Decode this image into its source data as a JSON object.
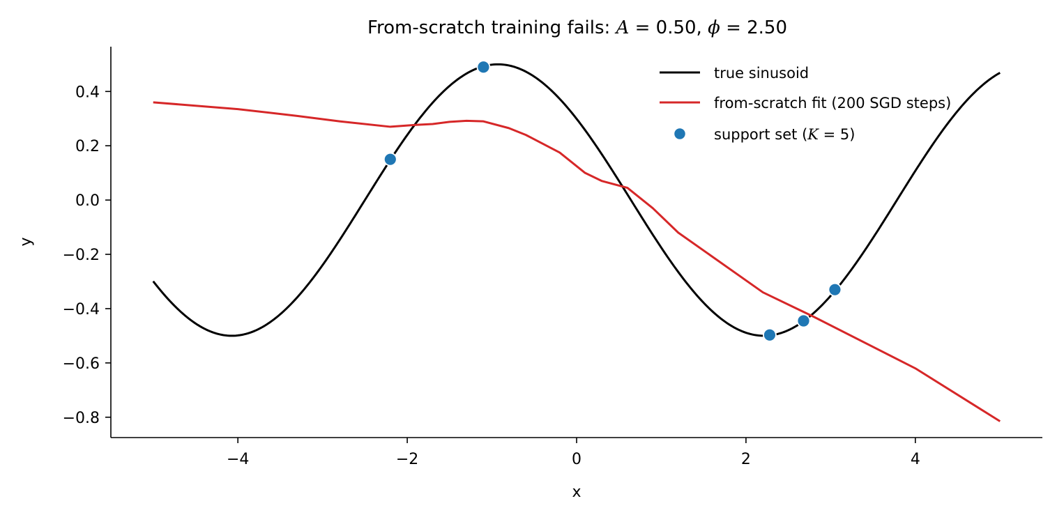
{
  "chart_data": {
    "type": "line",
    "title_prefix": "From-scratch training fails: ",
    "title_A_sym": "A",
    "title_A_val": " = 0.50, ",
    "title_phi_sym": "ϕ",
    "title_phi_val": " = 2.50",
    "xlabel": "x",
    "ylabel": "y",
    "xlim": [
      -5.5,
      5.5
    ],
    "ylim": [
      -0.875,
      0.565
    ],
    "xticks": [
      -4,
      -2,
      0,
      2,
      4
    ],
    "xtick_labels": [
      "−4",
      "−2",
      "0",
      "2",
      "4"
    ],
    "yticks": [
      -0.8,
      -0.6,
      -0.4,
      -0.2,
      0.0,
      0.2,
      0.4
    ],
    "ytick_labels": [
      "−0.8",
      "−0.6",
      "−0.4",
      "−0.2",
      "0.0",
      "0.2",
      "0.4"
    ],
    "grid": false,
    "legend_position": "top-right",
    "series": [
      {
        "name": "true sinusoid",
        "kind": "function",
        "color": "#000000",
        "amplitude": 0.5,
        "phase": 2.5,
        "x_range": [
          -5,
          5
        ]
      },
      {
        "name": "from-scratch fit (200 SGD steps)",
        "kind": "line",
        "color": "#d62728",
        "x": [
          -5.0,
          -4.0,
          -3.3,
          -2.8,
          -2.2,
          -1.9,
          -1.7,
          -1.5,
          -1.3,
          -1.1,
          -0.8,
          -0.6,
          -0.2,
          0.1,
          0.3,
          0.6,
          0.9,
          1.2,
          2.2,
          2.8,
          4.0,
          5.0
        ],
        "y": [
          0.36,
          0.335,
          0.31,
          0.29,
          0.27,
          0.277,
          0.28,
          0.288,
          0.292,
          0.29,
          0.265,
          0.24,
          0.175,
          0.1,
          0.07,
          0.045,
          -0.03,
          -0.12,
          -0.34,
          -0.43,
          -0.62,
          -0.815
        ]
      },
      {
        "name": "support set (",
        "name_K": "K",
        "name_suffix": " = 5)",
        "kind": "scatter",
        "color": "#1f77b4",
        "x": [
          -2.2,
          -1.1,
          2.28,
          2.68,
          3.05
        ],
        "y": [
          0.15,
          0.49,
          -0.497,
          -0.445,
          -0.33
        ]
      }
    ]
  }
}
